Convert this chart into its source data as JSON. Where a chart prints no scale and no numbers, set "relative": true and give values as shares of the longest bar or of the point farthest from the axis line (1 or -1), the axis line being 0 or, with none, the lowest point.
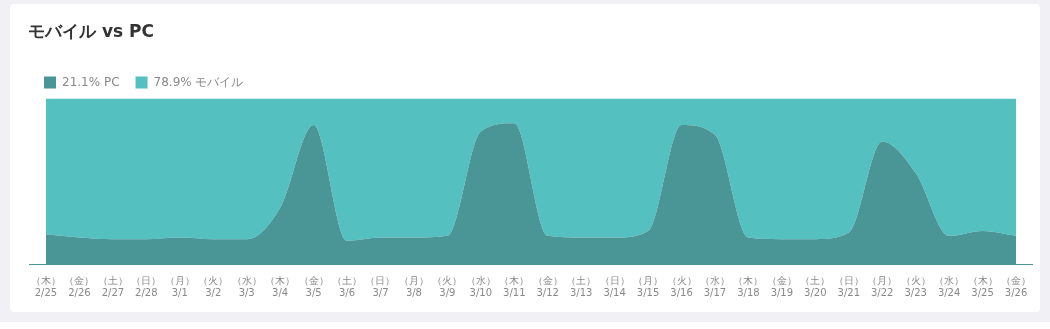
{
  "chart_data": {
    "type": "area",
    "title": "モバイル vs PC",
    "stacked": true,
    "relative": true,
    "legend": "top left",
    "grid": false,
    "categories": [
      "（木） 2/25",
      "（金） 2/26",
      "（土） 2/27",
      "（日） 2/28",
      "（月） 3/1",
      "（火） 3/2",
      "（水） 3/3",
      "（木） 3/4",
      "（金） 3/5",
      "（土） 3/6",
      "（日） 3/7",
      "（月） 3/8",
      "（火） 3/9",
      "（水） 3/10",
      "（木） 3/11",
      "（金） 3/12",
      "（土） 3/13",
      "（日） 3/14",
      "（月） 3/15",
      "（火） 3/16",
      "（水） 3/17",
      "（木） 3/18",
      "（金） 3/19",
      "（土） 3/20",
      "（日） 3/21",
      "（月） 3/22",
      "（火） 3/23",
      "（水） 3/24",
      "（木） 3/25",
      "（金） 3/26"
    ],
    "series": [
      {
        "name": "21.1% PC",
        "color": "#4a9696",
        "values": [
          0.18,
          0.16,
          0.15,
          0.15,
          0.16,
          0.15,
          0.15,
          0.34,
          0.84,
          0.14,
          0.16,
          0.16,
          0.17,
          0.8,
          0.85,
          0.17,
          0.16,
          0.16,
          0.2,
          0.84,
          0.78,
          0.16,
          0.15,
          0.15,
          0.19,
          0.74,
          0.55,
          0.17,
          0.2,
          0.17
        ]
      },
      {
        "name": "78.9% モバイル",
        "color": "#54c0c0",
        "values": [
          0.82,
          0.84,
          0.85,
          0.85,
          0.84,
          0.85,
          0.85,
          0.66,
          0.16,
          0.86,
          0.84,
          0.84,
          0.83,
          0.2,
          0.15,
          0.83,
          0.84,
          0.84,
          0.8,
          0.16,
          0.22,
          0.84,
          0.85,
          0.85,
          0.81,
          0.26,
          0.45,
          0.83,
          0.8,
          0.83
        ]
      }
    ]
  }
}
